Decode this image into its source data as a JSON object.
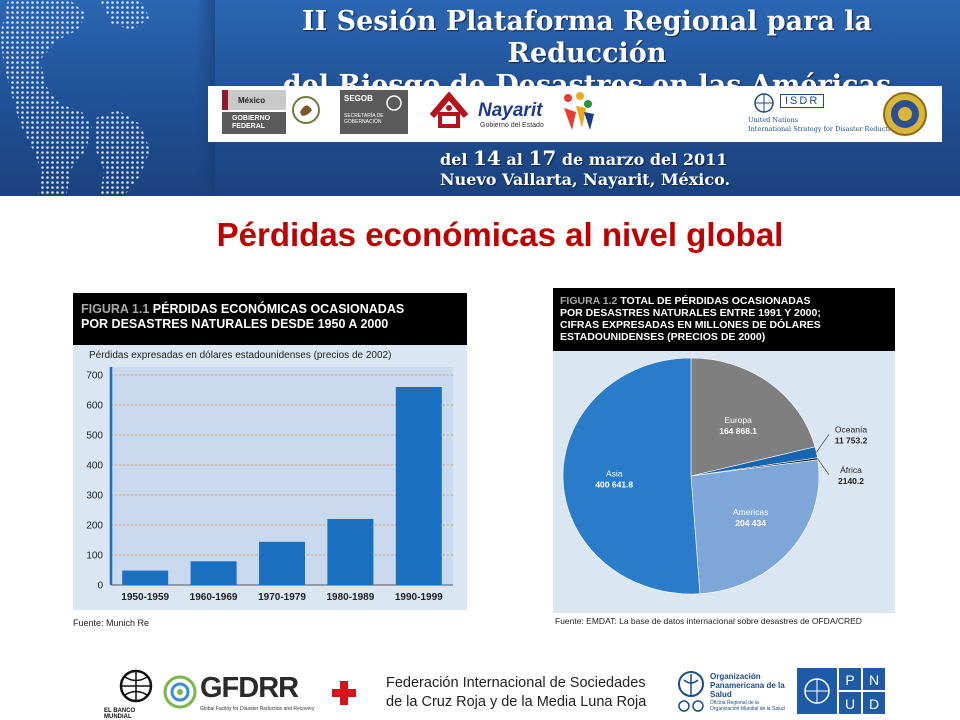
{
  "banner": {
    "title_line1": "II Sesión Plataforma Regional para la Reducción",
    "title_line2": "del Riesgo de Desastres en las Américas",
    "dates_line1_pre": "del ",
    "dates_day1": "14",
    "dates_line1_mid": " al ",
    "dates_day2": "17",
    "dates_line1_post": " de marzo del 2011",
    "dates_line2": "Nuevo Vallarta, Nayarit, México.",
    "logos": {
      "mexico_top": "México",
      "mexico_bottom": "GOBIERNO FEDERAL",
      "segob": "SEGOB",
      "segob_sub": "SECRETARÍA DE GOBERNACIÓN",
      "nayarit": "Nayarit",
      "nayarit_sub": "Gobierno del Estado",
      "isdr": "ISDR",
      "isdr_sub_1": "United Nations",
      "isdr_sub_2": "International Strategy for Disaster Reduction"
    }
  },
  "slide_title": "Pérdidas económicas al nivel global",
  "figure1": {
    "num": "FIGURA 1.1",
    "title_rest": " PÉRDIDAS ECONÓMICAS OCASIONADAS",
    "title_line2": "POR DESASTRES NATURALES DESDE 1950 A 2000",
    "source": "Fuente: Munich Re"
  },
  "figure2": {
    "num": "FIGURA 1.2",
    "title_rest": " TOTAL DE PÉRDIDAS OCASIONADAS",
    "title_line2": "POR DESASTRES NATURALES ENTRE 1991 Y 2000;",
    "title_line3": "CIFRAS EXPRESADAS EN MILLONES DE DÓLARES",
    "title_line4": "ESTADOUNIDENSES (PRECIOS DE 2000)",
    "source": "Fuente: EMDAT: La base de datos internacional sobre desastres de OFDA/CRED"
  },
  "chart_data": [
    {
      "type": "bar",
      "title": "PÉRDIDAS ECONÓMICAS OCASIONADAS POR DESASTRES NATURALES DESDE 1950 A 2000",
      "ylabel": "Pérdidas expresadas en dólares estadounidenses (precios de 2002)",
      "categories": [
        "1950-1959",
        "1960-1969",
        "1970-1979",
        "1980-1989",
        "1990-1999"
      ],
      "values": [
        48,
        79,
        144,
        220,
        660
      ],
      "ylim": [
        0,
        700
      ],
      "yticks": [
        0,
        100,
        200,
        300,
        400,
        500,
        600,
        700
      ],
      "grid": true,
      "colors": {
        "bar": "#1a6fc0",
        "background": "#dbe6f3",
        "grid": "#e08a3a"
      }
    },
    {
      "type": "pie",
      "title": "TOTAL DE PÉRDIDAS OCASIONADAS POR DESASTRES NATURALES ENTRE 1991 Y 2000; CIFRAS EXPRESADAS EN MILLONES DE DÓLARES ESTADOUNIDENSES (PRECIOS DE 2000)",
      "slices": [
        {
          "label": "Europa",
          "value": 164868.1,
          "value_label": "164 868.1",
          "color": "#7f7f7f"
        },
        {
          "label": "Oceanía",
          "value": 11753.2,
          "value_label": "11 753.2",
          "color": "#1565b0"
        },
        {
          "label": "África",
          "value": 2140.2,
          "value_label": "2140.2",
          "color": "#111111"
        },
        {
          "label": "Americas",
          "value": 204434,
          "value_label": "204 434",
          "color": "#7ea6d9"
        },
        {
          "label": "Asia",
          "value": 400641.8,
          "value_label": "400 641.8",
          "color": "#2a7ccb"
        }
      ]
    }
  ],
  "footer": {
    "banco_mundial": "EL BANCO MUNDIAL",
    "gfdrr": "GFDRR",
    "gfdrr_sub": "Global Facility for Disaster Reduction and Recovery",
    "ifrc_line1": "Federación Internacional de Sociedades",
    "ifrc_line2": "de la Cruz Roja y de la Media Luna Roja",
    "ops_name": "Organización Panamericana de la Salud",
    "ops_sub": "Oficina Regional de la Organización Mundial de la Salud",
    "pnud": [
      "P",
      "N",
      "U",
      "D"
    ]
  }
}
